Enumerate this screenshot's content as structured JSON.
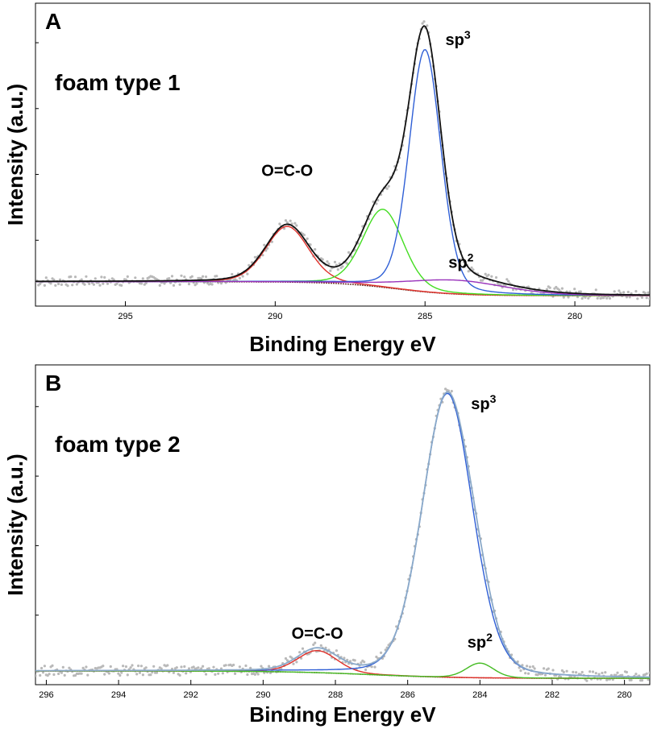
{
  "chart_data": [
    {
      "panel_label": "A",
      "type": "line",
      "sample_label": "foam type 1",
      "xlabel": "Binding Energy eV",
      "ylabel": "Intensity (a.u.)",
      "x_reversed": true,
      "xlim": [
        298,
        277.5
      ],
      "ylim": [
        0,
        100
      ],
      "xticks": [
        295,
        290,
        285,
        280
      ],
      "background": {
        "type": "sigmoid",
        "left": 7,
        "right": 2,
        "center": 286,
        "width": 1.0
      },
      "peaks": [
        {
          "label": "O=C-O",
          "center": 289.6,
          "height": 20,
          "fwhm": 1.7,
          "color": "#e0302a"
        },
        {
          "label": "",
          "center": 286.4,
          "height": 28,
          "fwhm": 1.6,
          "color": "#44dd22"
        },
        {
          "label": "sp3",
          "center": 285.0,
          "height": 87,
          "fwhm": 1.25,
          "color": "#2f5fd6"
        },
        {
          "label": "sp2",
          "center": 284.0,
          "height": 5,
          "fwhm": 4.0,
          "color": "#9933bb"
        }
      ],
      "envelope_color": "#111111",
      "points_color": "#b9b9b9",
      "annotations": [
        {
          "text": "O=C-O",
          "x": 289.6,
          "y": 45
        },
        {
          "text": "sp3",
          "x": 283.9,
          "y": 92
        },
        {
          "text": "sp2",
          "x": 283.8,
          "y": 12
        }
      ]
    },
    {
      "panel_label": "B",
      "type": "line",
      "sample_label": "foam type 2",
      "xlabel": "Binding Energy eV",
      "ylabel": "Intensity (a.u.)",
      "x_reversed": true,
      "xlim": [
        296.3,
        279.3
      ],
      "ylim": [
        0,
        100
      ],
      "xticks": [
        296,
        294,
        292,
        290,
        288,
        286,
        284,
        282,
        280
      ],
      "background": {
        "type": "sigmoid",
        "left": 3,
        "right": 0.5,
        "center": 287.0,
        "width": 1.2
      },
      "peaks": [
        {
          "label": "O=C-O",
          "center": 288.5,
          "height": 7.5,
          "fwhm": 1.3,
          "color": "#e0302a"
        },
        {
          "label": "sp3",
          "center": 284.9,
          "height": 96.5,
          "fwhm": 1.65,
          "color": "#2f5fd6"
        },
        {
          "label": "sp2",
          "center": 284.0,
          "height": 5,
          "fwhm": 0.9,
          "color": "#44bb22"
        }
      ],
      "envelope_color": "#8aa9c9",
      "points_color": "#b9b9b9",
      "annotations": [
        {
          "text": "O=C-O",
          "x": 288.5,
          "y": 14
        },
        {
          "text": "sp3",
          "x": 283.9,
          "y": 92
        },
        {
          "text": "sp2",
          "x": 284.0,
          "y": 11
        }
      ]
    }
  ]
}
